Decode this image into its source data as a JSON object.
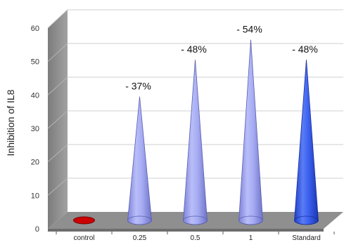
{
  "chart_data": {
    "type": "bar",
    "style": "3d-cone",
    "categories": [
      "control",
      "0.25",
      "0.5",
      "1",
      "Standard"
    ],
    "values": [
      0,
      37,
      48,
      54,
      48
    ],
    "data_labels": [
      "",
      "- 37%",
      "- 48%",
      "- 54%",
      "- 48%"
    ],
    "ylabel": "Inhibition of IL8",
    "xlabel": "",
    "ylim": [
      0,
      60
    ],
    "yticks": [
      0,
      10,
      20,
      30,
      40,
      50,
      60
    ],
    "grid": true,
    "colors": {
      "control": "#cc0000",
      "treatment": "#9a9ff0",
      "standard": "#2d56e8",
      "wall": "#8c8c8c",
      "floor": "#909090",
      "grid": "#cfcfcf"
    }
  }
}
